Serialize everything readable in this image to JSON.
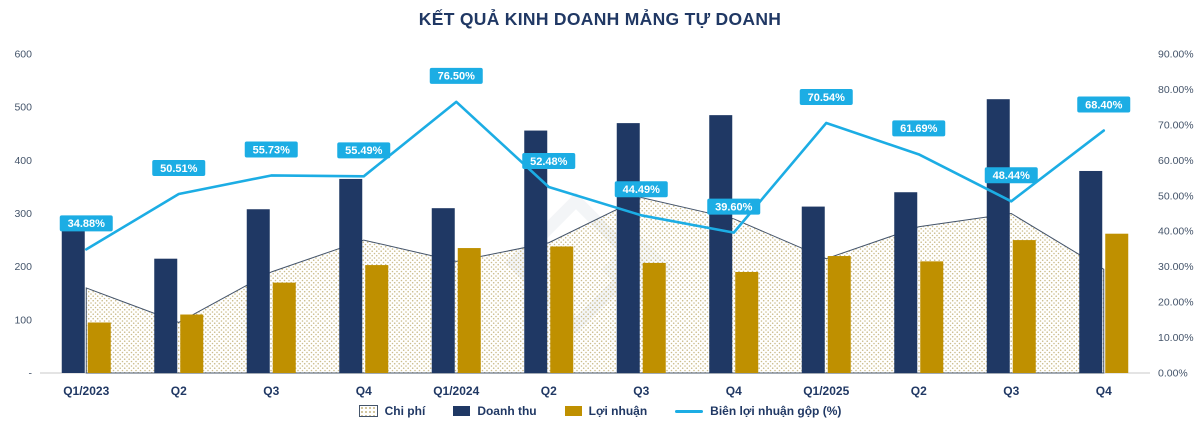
{
  "title": "KẾT QUẢ KINH DOANH MẢNG TỰ DOANH",
  "colors": {
    "title": "#203864",
    "doanh_thu_bar": "#1F3864",
    "loi_nhuan_bar": "#BF9000",
    "margin_line": "#1CADE4",
    "label_box": "#1CADE4",
    "label_text": "#FFFFFF",
    "chi_phi_dots": "#CBBC8C",
    "chi_phi_outline": "#44546A",
    "axis_line": "#C9C9C9",
    "tick_text": "#44546A",
    "x_label_text": "#203864"
  },
  "chart_data": {
    "type": "combo",
    "title": "KẾT QUẢ KINH DOANH MẢNG TỰ DOANH",
    "categories": [
      "Q1/2023",
      "Q2",
      "Q3",
      "Q4",
      "Q1/2024",
      "Q2",
      "Q3",
      "Q4",
      "Q1/2025",
      "Q2",
      "Q3",
      "Q4"
    ],
    "series": [
      {
        "name": "Chi phí",
        "type": "area",
        "axis": "left",
        "values": [
          160,
          95,
          190,
          250,
          210,
          245,
          330,
          290,
          215,
          275,
          300,
          195
        ]
      },
      {
        "name": "Doanh thu",
        "type": "bar",
        "axis": "left",
        "values": [
          270,
          215,
          308,
          365,
          310,
          456,
          470,
          485,
          313,
          340,
          515,
          380
        ]
      },
      {
        "name": "Lợi nhuận",
        "type": "bar",
        "axis": "left",
        "values": [
          95,
          110,
          170,
          203,
          235,
          238,
          207,
          190,
          220,
          210,
          250,
          262
        ]
      },
      {
        "name": "Biên lợi nhuận gộp (%)",
        "type": "line",
        "axis": "right",
        "values": [
          34.88,
          50.51,
          55.73,
          55.49,
          76.5,
          52.48,
          44.49,
          39.6,
          70.54,
          61.69,
          48.44,
          68.4
        ],
        "labels": [
          "34.88%",
          "50.51%",
          "55.73%",
          "55.49%",
          "76.50%",
          "52.48%",
          "44.49%",
          "39.60%",
          "70.54%",
          "61.69%",
          "48.44%",
          "68.40%"
        ]
      }
    ],
    "left_axis": {
      "min": 0,
      "max": 600,
      "step": 100,
      "ticks": [
        "600",
        "500",
        "400",
        "300",
        "200",
        "100",
        "-"
      ]
    },
    "right_axis": {
      "min": 0,
      "max": 90,
      "step": 10,
      "ticks": [
        "90.00%",
        "80.00%",
        "70.00%",
        "60.00%",
        "50.00%",
        "40.00%",
        "30.00%",
        "20.00%",
        "10.00%",
        "0.00%"
      ]
    },
    "legend": [
      "Chi phí",
      "Doanh thu",
      "Lợi nhuận",
      "Biên lợi nhuận gộp (%)"
    ],
    "grid": false,
    "legend_position": "bottom"
  }
}
